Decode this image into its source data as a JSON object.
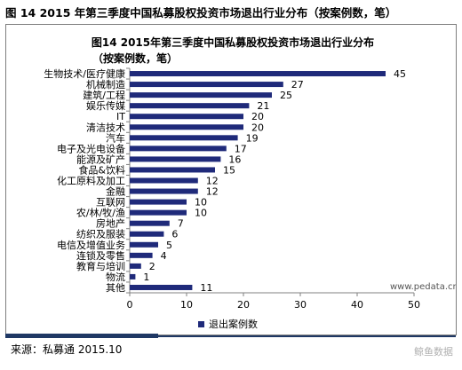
{
  "outer_title": "图 14 2015 年第三季度中国私募股权投资市场退出行业分布（按案例数，笔）",
  "source": "来源：私募通  2015.10",
  "watermark": "鲸鱼数据",
  "colors": {
    "bar": "#1f2a7a",
    "axis": "#808080",
    "frame": "#7f7f7f",
    "accent": "#1f3864"
  },
  "chart_data": {
    "type": "bar",
    "orientation": "horizontal",
    "title_lines": [
      "图14 2015年第三季度中国私募股权投资市场退出行业分布",
      "（按案例数，笔）"
    ],
    "categories": [
      "生物技术/医疗健康",
      "机械制造",
      "建筑/工程",
      "娱乐传媒",
      "IT",
      "清洁技术",
      "汽车",
      "电子及光电设备",
      "能源及矿产",
      "食品&饮料",
      "化工原料及加工",
      "金融",
      "互联网",
      "农/林/牧/渔",
      "房地产",
      "纺织及服装",
      "电信及增值业务",
      "连锁及零售",
      "教育与培训",
      "物流",
      "其他"
    ],
    "series": [
      {
        "name": "退出案例数",
        "values": [
          45,
          27,
          25,
          21,
          20,
          20,
          19,
          17,
          16,
          15,
          12,
          12,
          10,
          10,
          7,
          6,
          5,
          4,
          2,
          1,
          11
        ]
      }
    ],
    "xlim": [
      0,
      50
    ],
    "xticks": [
      0,
      10,
      20,
      30,
      40,
      50
    ],
    "watermark": "www.pedata.cn",
    "legend_position": "bottom",
    "grid": false
  }
}
